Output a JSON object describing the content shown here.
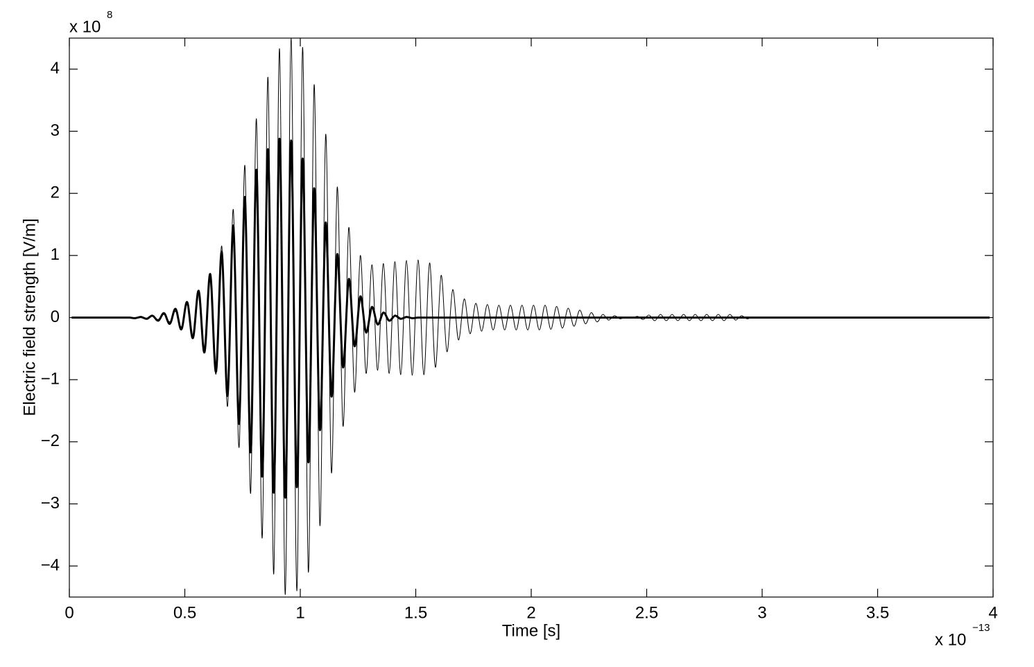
{
  "chart_data": {
    "type": "line",
    "x_label": "Time [s]",
    "y_label": "Electric field strength [V/m]",
    "x_multiplier": {
      "text": "x 10",
      "exponent": "−13"
    },
    "y_multiplier": {
      "text": "x 10",
      "exponent": "8"
    },
    "xlim": [
      0,
      4
    ],
    "ylim": [
      -4.5,
      4.5
    ],
    "xticks": [
      0,
      0.5,
      1,
      1.5,
      2,
      2.5,
      3,
      3.5,
      4
    ],
    "yticks": [
      -4,
      -3,
      -2,
      -1,
      0,
      1,
      2,
      3,
      4
    ],
    "x": [
      0.01,
      0.035,
      0.06,
      0.085,
      0.11,
      0.135,
      0.16,
      0.185,
      0.21,
      0.235,
      0.26,
      0.285,
      0.31,
      0.335,
      0.36,
      0.385,
      0.41,
      0.435,
      0.46,
      0.485,
      0.51,
      0.535,
      0.56,
      0.585,
      0.61,
      0.635,
      0.66,
      0.685,
      0.71,
      0.735,
      0.76,
      0.785,
      0.81,
      0.835,
      0.86,
      0.885,
      0.91,
      0.935,
      0.96,
      0.985,
      1.01,
      1.035,
      1.06,
      1.085,
      1.11,
      1.135,
      1.16,
      1.185,
      1.21,
      1.235,
      1.26,
      1.285,
      1.31,
      1.335,
      1.36,
      1.385,
      1.41,
      1.435,
      1.46,
      1.485,
      1.51,
      1.535,
      1.56,
      1.585,
      1.61,
      1.635,
      1.66,
      1.685,
      1.71,
      1.735,
      1.76,
      1.785,
      1.81,
      1.835,
      1.86,
      1.885,
      1.91,
      1.935,
      1.96,
      1.985,
      2.01,
      2.035,
      2.06,
      2.085,
      2.11,
      2.135,
      2.16,
      2.185,
      2.21,
      2.235,
      2.26,
      2.285,
      2.31,
      2.335,
      2.36,
      2.385,
      2.41,
      2.435,
      2.46,
      2.485,
      2.51,
      2.535,
      2.56,
      2.585,
      2.61,
      2.635,
      2.66,
      2.685,
      2.71,
      2.735,
      2.76,
      2.785,
      2.81,
      2.835,
      2.86,
      2.885,
      2.91,
      2.935,
      2.96,
      2.985,
      3.01,
      3.035,
      3.06,
      3.085,
      3.11,
      3.135,
      3.16,
      3.185,
      3.21,
      3.235,
      3.26,
      3.285,
      3.31,
      3.335,
      3.36,
      3.385,
      3.41,
      3.435,
      3.46,
      3.485,
      3.51,
      3.535,
      3.56,
      3.585,
      3.61,
      3.635,
      3.66,
      3.685,
      3.71,
      3.735,
      3.76,
      3.785,
      3.81,
      3.835,
      3.86,
      3.885,
      3.91,
      3.935,
      3.96,
      3.985
    ],
    "series": [
      {
        "color": "#000000",
        "values": [
          0,
          0,
          0,
          0,
          0,
          0,
          0,
          0,
          0,
          0,
          0,
          0,
          0.01,
          -0.01,
          0.02,
          -0.03,
          0.05,
          -0.07,
          0.1,
          -0.15,
          0.21,
          -0.29,
          0.4,
          -0.53,
          0.7,
          -0.91,
          1.15,
          -1.43,
          1.74,
          -2.09,
          2.45,
          -2.83,
          3.2,
          -3.55,
          3.87,
          -4.13,
          4.33,
          -4.46,
          4.5,
          -4.4,
          4.35,
          -4.1,
          3.75,
          -3.35,
          2.95,
          -2.5,
          2.1,
          -1.75,
          1.45,
          -1.2,
          1,
          -0.9,
          0.85,
          -0.85,
          0.87,
          -0.9,
          0.9,
          -0.92,
          0.92,
          -0.93,
          0.93,
          -0.92,
          0.88,
          -0.8,
          0.68,
          -0.55,
          0.45,
          -0.36,
          0.3,
          -0.26,
          0.23,
          -0.22,
          0.21,
          -0.2,
          0.2,
          -0.2,
          0.2,
          -0.2,
          0.2,
          -0.2,
          0.2,
          -0.2,
          0.2,
          -0.19,
          0.18,
          -0.17,
          0.15,
          -0.14,
          0.12,
          -0.1,
          0.08,
          -0.07,
          0.05,
          -0.04,
          0.03,
          -0.02,
          0.01,
          -0.01,
          0.02,
          -0.03,
          0.04,
          -0.05,
          0.05,
          -0.05,
          0.05,
          -0.05,
          0.05,
          -0.05,
          0.05,
          -0.05,
          0.05,
          -0.05,
          0.05,
          -0.05,
          0.05,
          -0.04,
          0.03,
          -0.02,
          0.01,
          0,
          0,
          0,
          0,
          0,
          0,
          0,
          0,
          0,
          0,
          0,
          0,
          0,
          0,
          0,
          0,
          0,
          0,
          0,
          0,
          0,
          0,
          0,
          0,
          0,
          0,
          0,
          0,
          0,
          0,
          0,
          0,
          0,
          0,
          0,
          0,
          0,
          0,
          0,
          0,
          0
        ]
      },
      {
        "color": "#000000",
        "values": [
          0,
          0,
          0,
          0,
          0,
          0,
          0,
          0,
          0,
          0,
          0,
          -0.01,
          0.01,
          -0.02,
          0.03,
          -0.05,
          0.07,
          -0.1,
          0.14,
          -0.19,
          0.25,
          -0.33,
          0.43,
          -0.56,
          0.7,
          -0.87,
          1.06,
          -1.26,
          1.48,
          -1.71,
          1.94,
          -2.17,
          2.38,
          -2.56,
          2.71,
          -2.82,
          2.88,
          -2.9,
          2.85,
          -2.73,
          2.56,
          -2.33,
          2.08,
          -1.81,
          1.53,
          -1.27,
          1.02,
          -0.8,
          0.62,
          -0.46,
          0.34,
          -0.24,
          0.17,
          -0.11,
          0.08,
          -0.05,
          0.03,
          -0.02,
          0.01,
          -0.01,
          0,
          0,
          0,
          0,
          0,
          0,
          0,
          0,
          0,
          0,
          0,
          0,
          0,
          0,
          0,
          0,
          0,
          0,
          0,
          0,
          0,
          0,
          0,
          0,
          0,
          0,
          0,
          0,
          0,
          0,
          0,
          0,
          0,
          0,
          0,
          0,
          0,
          0,
          0,
          0,
          0,
          0,
          0,
          0,
          0,
          0,
          0,
          0,
          0,
          0,
          0,
          0,
          0,
          0,
          0,
          0,
          0,
          0,
          0,
          0,
          0,
          0,
          0,
          0,
          0,
          0,
          0,
          0,
          0,
          0,
          0,
          0,
          0,
          0,
          0,
          0,
          0,
          0,
          0,
          0,
          0,
          0,
          0,
          0,
          0,
          0,
          0,
          0,
          0,
          0,
          0,
          0,
          0,
          0,
          0,
          0,
          0,
          0,
          0,
          0
        ]
      }
    ]
  }
}
